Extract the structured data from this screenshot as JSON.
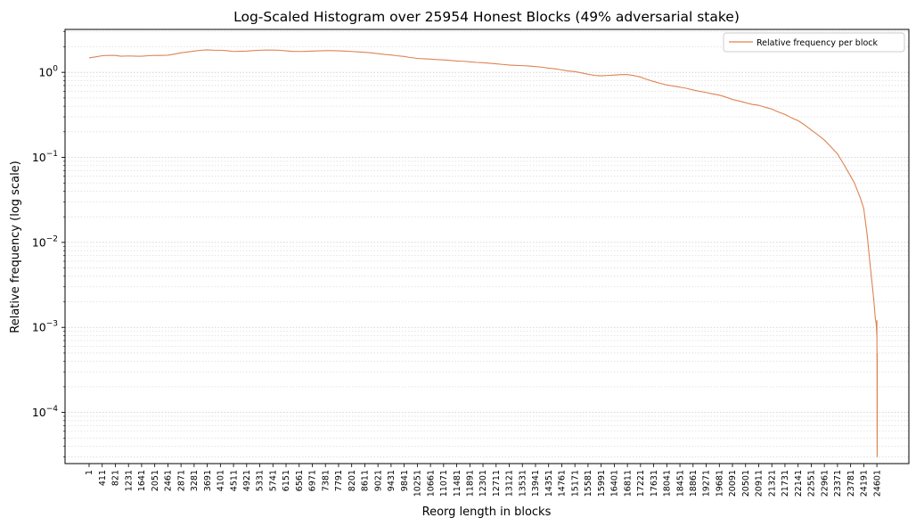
{
  "chart_data": {
    "type": "line",
    "title": "Log-Scaled Histogram over 25954 Honest Blocks (49% adversarial stake)",
    "xlabel": "Reorg length in blocks",
    "ylabel": "Relative frequency (log scale)",
    "yscale": "log",
    "ylim": [
      2.5e-05,
      3.2
    ],
    "xlim": [
      -750,
      25600
    ],
    "grid": "horizontal-minor-dotted",
    "legend": {
      "position": "top-right",
      "entries": [
        "Relative frequency per block"
      ]
    },
    "x_ticks": [
      1,
      411,
      821,
      1231,
      1641,
      2051,
      2461,
      2871,
      3281,
      3691,
      4101,
      4511,
      4921,
      5331,
      5741,
      6151,
      6561,
      6971,
      7381,
      7791,
      8201,
      8611,
      9021,
      9431,
      9841,
      10251,
      10661,
      11071,
      11481,
      11891,
      12301,
      12711,
      13121,
      13531,
      13941,
      14351,
      14761,
      15171,
      15581,
      15991,
      16401,
      16811,
      17221,
      17631,
      18041,
      18451,
      18861,
      19271,
      19681,
      20091,
      20501,
      20911,
      21321,
      21731,
      22141,
      22551,
      22961,
      23371,
      23781,
      24191,
      24601
    ],
    "y_ticks": [
      {
        "value": 1,
        "label": "10^0"
      },
      {
        "value": 0.1,
        "label": "10^-1"
      },
      {
        "value": 0.01,
        "label": "10^-2"
      },
      {
        "value": 0.001,
        "label": "10^-3"
      },
      {
        "value": 0.0001,
        "label": "10^-4"
      }
    ],
    "series": [
      {
        "name": "Relative frequency per block",
        "color": "#dd8452",
        "x": [
          1,
          200,
          411,
          600,
          821,
          1000,
          1231,
          1500,
          1641,
          1850,
          2051,
          2250,
          2461,
          2700,
          2871,
          3100,
          3281,
          3500,
          3691,
          3900,
          4101,
          4300,
          4511,
          4700,
          4921,
          5100,
          5331,
          5500,
          5741,
          5950,
          6151,
          6350,
          6561,
          6800,
          6971,
          7200,
          7381,
          7600,
          7791,
          8000,
          8201,
          8400,
          8611,
          8800,
          9021,
          9200,
          9431,
          9600,
          9841,
          10000,
          10251,
          10500,
          10661,
          10900,
          11071,
          11300,
          11481,
          11700,
          11891,
          12100,
          12301,
          12500,
          12711,
          12900,
          13121,
          13300,
          13531,
          13700,
          13941,
          14150,
          14351,
          14550,
          14761,
          14950,
          15171,
          15350,
          15581,
          15800,
          15991,
          16200,
          16401,
          16600,
          16811,
          17000,
          17221,
          17400,
          17631,
          17850,
          18041,
          18250,
          18451,
          18650,
          18861,
          19050,
          19271,
          19450,
          19681,
          19900,
          20091,
          20300,
          20501,
          20700,
          20911,
          21100,
          21321,
          21500,
          21731,
          21950,
          22141,
          22350,
          22551,
          22750,
          22961,
          23150,
          23371,
          23550,
          23781,
          23900,
          24000,
          24100,
          24191,
          24300,
          24400,
          24500,
          24550,
          24580,
          24600,
          24601,
          24604,
          24606,
          24608,
          24610,
          24612,
          24614
        ],
        "values": [
          1.48,
          1.52,
          1.57,
          1.58,
          1.58,
          1.55,
          1.56,
          1.55,
          1.55,
          1.57,
          1.58,
          1.58,
          1.59,
          1.65,
          1.7,
          1.74,
          1.78,
          1.82,
          1.84,
          1.82,
          1.82,
          1.8,
          1.76,
          1.77,
          1.78,
          1.8,
          1.82,
          1.83,
          1.83,
          1.82,
          1.79,
          1.77,
          1.76,
          1.77,
          1.78,
          1.79,
          1.8,
          1.8,
          1.79,
          1.78,
          1.76,
          1.74,
          1.72,
          1.7,
          1.66,
          1.63,
          1.6,
          1.57,
          1.54,
          1.5,
          1.46,
          1.44,
          1.43,
          1.41,
          1.4,
          1.38,
          1.36,
          1.35,
          1.33,
          1.31,
          1.3,
          1.28,
          1.26,
          1.24,
          1.22,
          1.21,
          1.2,
          1.19,
          1.17,
          1.15,
          1.12,
          1.1,
          1.07,
          1.04,
          1.02,
          0.99,
          0.95,
          0.92,
          0.91,
          0.92,
          0.93,
          0.94,
          0.94,
          0.92,
          0.88,
          0.83,
          0.78,
          0.74,
          0.71,
          0.69,
          0.67,
          0.65,
          0.62,
          0.6,
          0.58,
          0.56,
          0.54,
          0.51,
          0.48,
          0.46,
          0.44,
          0.42,
          0.41,
          0.39,
          0.37,
          0.345,
          0.32,
          0.29,
          0.27,
          0.24,
          0.21,
          0.185,
          0.16,
          0.135,
          0.11,
          0.085,
          0.06,
          0.05,
          0.04,
          0.032,
          0.025,
          0.012,
          0.005,
          0.0022,
          0.0013,
          0.0011,
          0.0008,
          0.0012,
          0.0006,
          0.0004,
          5e-05,
          3e-05,
          4e-05,
          0.0005
        ]
      }
    ]
  }
}
